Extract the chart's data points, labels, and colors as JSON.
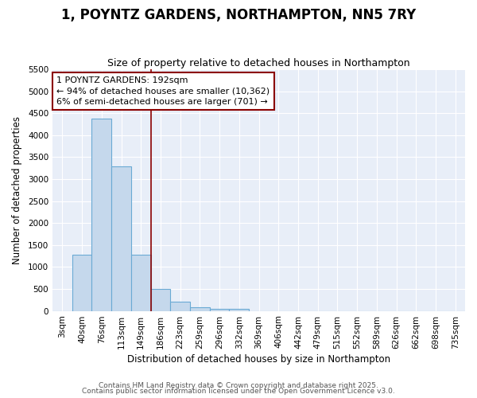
{
  "title": "1, POYNTZ GARDENS, NORTHAMPTON, NN5 7RY",
  "subtitle": "Size of property relative to detached houses in Northampton",
  "xlabel": "Distribution of detached houses by size in Northampton",
  "ylabel": "Number of detached properties",
  "bar_color": "#c5d8ec",
  "bar_edge_color": "#6aaad4",
  "bg_color": "#e8eef8",
  "grid_color": "white",
  "categories": [
    "3sqm",
    "40sqm",
    "76sqm",
    "113sqm",
    "149sqm",
    "186sqm",
    "223sqm",
    "259sqm",
    "296sqm",
    "332sqm",
    "369sqm",
    "406sqm",
    "442sqm",
    "479sqm",
    "515sqm",
    "552sqm",
    "589sqm",
    "626sqm",
    "662sqm",
    "698sqm",
    "735sqm"
  ],
  "values": [
    0,
    1280,
    4380,
    3300,
    1280,
    500,
    210,
    90,
    55,
    55,
    0,
    0,
    0,
    0,
    0,
    0,
    0,
    0,
    0,
    0,
    0
  ],
  "ylim": [
    0,
    5500
  ],
  "yticks": [
    0,
    500,
    1000,
    1500,
    2000,
    2500,
    3000,
    3500,
    4000,
    4500,
    5000,
    5500
  ],
  "vline_color": "#8b0000",
  "vline_x": 4.5,
  "annotation_text": "1 POYNTZ GARDENS: 192sqm\n← 94% of detached houses are smaller (10,362)\n6% of semi-detached houses are larger (701) →",
  "annotation_box_color": "#8b0000",
  "footer1": "Contains HM Land Registry data © Crown copyright and database right 2025.",
  "footer2": "Contains public sector information licensed under the Open Government Licence v3.0.",
  "title_fontsize": 12,
  "subtitle_fontsize": 9,
  "axis_label_fontsize": 8.5,
  "tick_fontsize": 7.5,
  "annotation_fontsize": 8,
  "footer_fontsize": 6.5
}
